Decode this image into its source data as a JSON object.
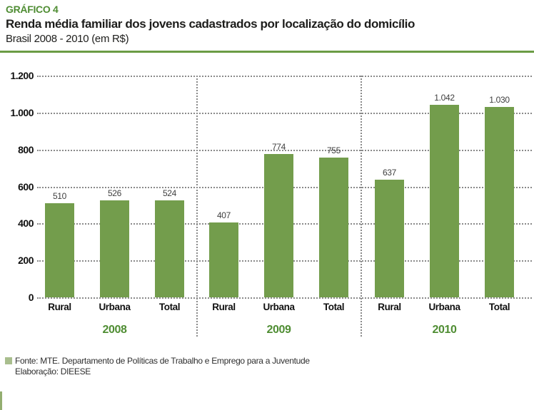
{
  "header": {
    "kicker": "GRÁFICO 4",
    "title": "Renda média familiar dos jovens cadastrados por localização do domicílio",
    "subtitle": "Brasil 2008 - 2010 (em R$)"
  },
  "footer": {
    "source": "Fonte: MTE. Departamento de Políticas de Trabalho e Emprego para a Juventude",
    "elaboration": "Elaboração: DIEESE"
  },
  "colors": {
    "bar": "#739d4c",
    "accent_text": "#4f8d33",
    "rule": "#6b9c45",
    "grid": "#8a8a8a",
    "value_label": "#3f3f3f",
    "legend_square": "#a9be8e"
  },
  "chart_data": {
    "type": "bar",
    "title": "Renda média familiar dos jovens cadastrados por localização do domicílio",
    "subtitle": "Brasil 2008 - 2010 (em R$)",
    "unit": "R$",
    "ylim": [
      0,
      1200
    ],
    "grid": "horizontal-dotted",
    "legend_position": "none",
    "yticks": [
      {
        "value": 1200,
        "label": "1.200"
      },
      {
        "value": 1000,
        "label": "1.000"
      },
      {
        "value": 800,
        "label": "800"
      },
      {
        "value": 600,
        "label": "600"
      },
      {
        "value": 400,
        "label": "400"
      },
      {
        "value": 200,
        "label": "200"
      },
      {
        "value": 0,
        "label": "0"
      }
    ],
    "groups": [
      {
        "year": "2008",
        "bars": [
          {
            "category": "Rural",
            "value": 510,
            "label": "510"
          },
          {
            "category": "Urbana",
            "value": 526,
            "label": "526"
          },
          {
            "category": "Total",
            "value": 524,
            "label": "524"
          }
        ]
      },
      {
        "year": "2009",
        "bars": [
          {
            "category": "Rural",
            "value": 407,
            "label": "407"
          },
          {
            "category": "Urbana",
            "value": 774,
            "label": "774"
          },
          {
            "category": "Total",
            "value": 755,
            "label": "755"
          }
        ]
      },
      {
        "year": "2010",
        "bars": [
          {
            "category": "Rural",
            "value": 637,
            "label": "637"
          },
          {
            "category": "Urbana",
            "value": 1042,
            "label": "1.042"
          },
          {
            "category": "Total",
            "value": 1030,
            "label": "1.030"
          }
        ]
      }
    ]
  }
}
